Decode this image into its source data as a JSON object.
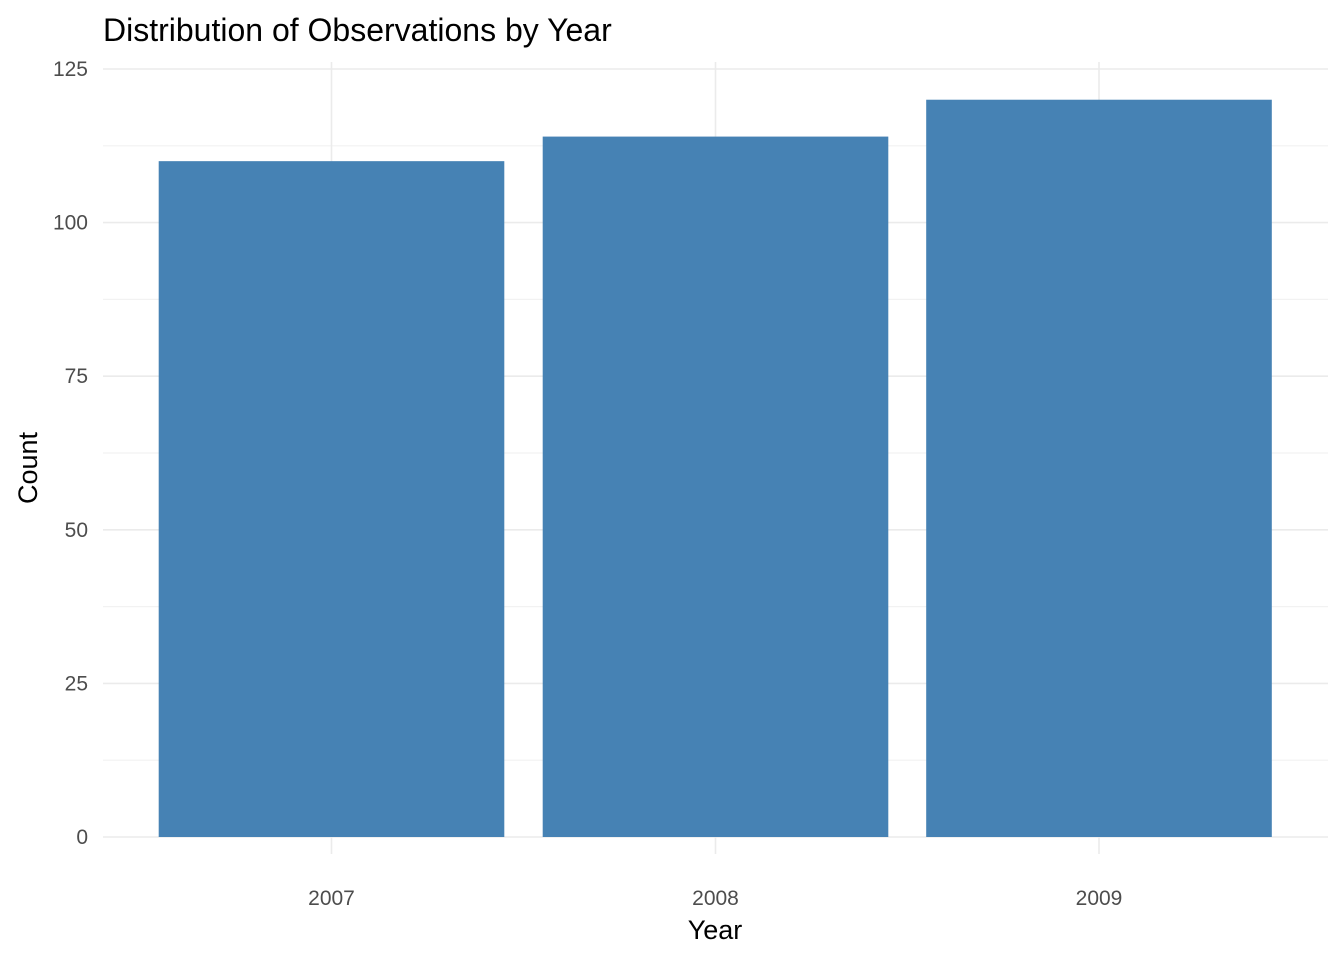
{
  "chart_data": {
    "type": "bar",
    "title": "Distribution of Observations by Year",
    "xlabel": "Year",
    "ylabel": "Count",
    "categories": [
      "2007",
      "2008",
      "2009"
    ],
    "values": [
      110,
      114,
      120
    ],
    "ylim": [
      0,
      125
    ],
    "yticks": [
      0,
      25,
      50,
      75,
      100,
      125
    ],
    "grid": true,
    "legend": "none",
    "bar_color": "#4682b4"
  }
}
